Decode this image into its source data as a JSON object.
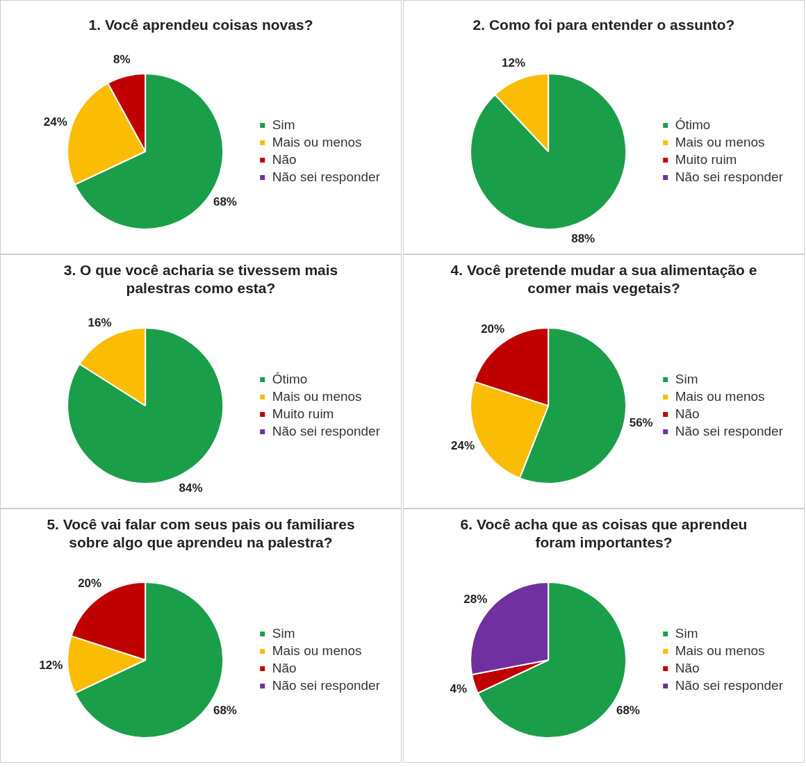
{
  "chart_data": [
    {
      "type": "pie",
      "title": "1. Você aprendeu coisas novas?",
      "categories": [
        "Sim",
        "Mais ou menos",
        "Não",
        "Não sei responder"
      ],
      "values": [
        68,
        24,
        8,
        0
      ],
      "value_labels": [
        "68%",
        "24%",
        "8%",
        null
      ],
      "colors": [
        "#1a9e49",
        "#fbbc04",
        "#c00000",
        "#7030a0"
      ],
      "legend": "right"
    },
    {
      "type": "pie",
      "title": "2. Como foi para entender o assunto?",
      "categories": [
        "Ótimo",
        "Mais ou menos",
        "Muito ruim",
        "Não sei responder"
      ],
      "values": [
        88,
        12,
        0,
        0
      ],
      "value_labels": [
        "88%",
        "12%",
        null,
        null
      ],
      "colors": [
        "#1a9e49",
        "#fbbc04",
        "#c00000",
        "#7030a0"
      ],
      "legend": "right"
    },
    {
      "type": "pie",
      "title": "3. O que você acharia se tivessem mais palestras como esta?",
      "categories": [
        "Ótimo",
        "Mais ou menos",
        "Muito ruim",
        "Não sei responder"
      ],
      "values": [
        84,
        16,
        0,
        0
      ],
      "value_labels": [
        "84%",
        "16%",
        null,
        null
      ],
      "colors": [
        "#1a9e49",
        "#fbbc04",
        "#c00000",
        "#7030a0"
      ],
      "legend": "right"
    },
    {
      "type": "pie",
      "title": "4. Você pretende mudar a sua alimentação e comer mais vegetais?",
      "categories": [
        "Sim",
        "Mais ou menos",
        "Não",
        "Não sei responder"
      ],
      "values": [
        56,
        24,
        20,
        0
      ],
      "value_labels": [
        "56%",
        "24%",
        "20%",
        null
      ],
      "colors": [
        "#1a9e49",
        "#fbbc04",
        "#c00000",
        "#7030a0"
      ],
      "legend": "right"
    },
    {
      "type": "pie",
      "title": "5. Você vai falar com seus pais ou familiares sobre algo que aprendeu na palestra?",
      "categories": [
        "Sim",
        "Mais ou menos",
        "Não",
        "Não sei responder"
      ],
      "values": [
        68,
        12,
        20,
        0
      ],
      "value_labels": [
        "68%",
        "12%",
        "20%",
        null
      ],
      "colors": [
        "#1a9e49",
        "#fbbc04",
        "#c00000",
        "#7030a0"
      ],
      "legend": "right"
    },
    {
      "type": "pie",
      "title": "6. Você acha que as coisas que aprendeu foram importantes?",
      "categories": [
        "Sim",
        "Mais ou menos",
        "Não",
        "Não sei responder"
      ],
      "values": [
        68,
        0,
        4,
        28
      ],
      "value_labels": [
        "68%",
        null,
        "4%",
        "28%"
      ],
      "colors": [
        "#1a9e49",
        "#fbbc04",
        "#c00000",
        "#7030a0"
      ],
      "legend": "right"
    }
  ]
}
